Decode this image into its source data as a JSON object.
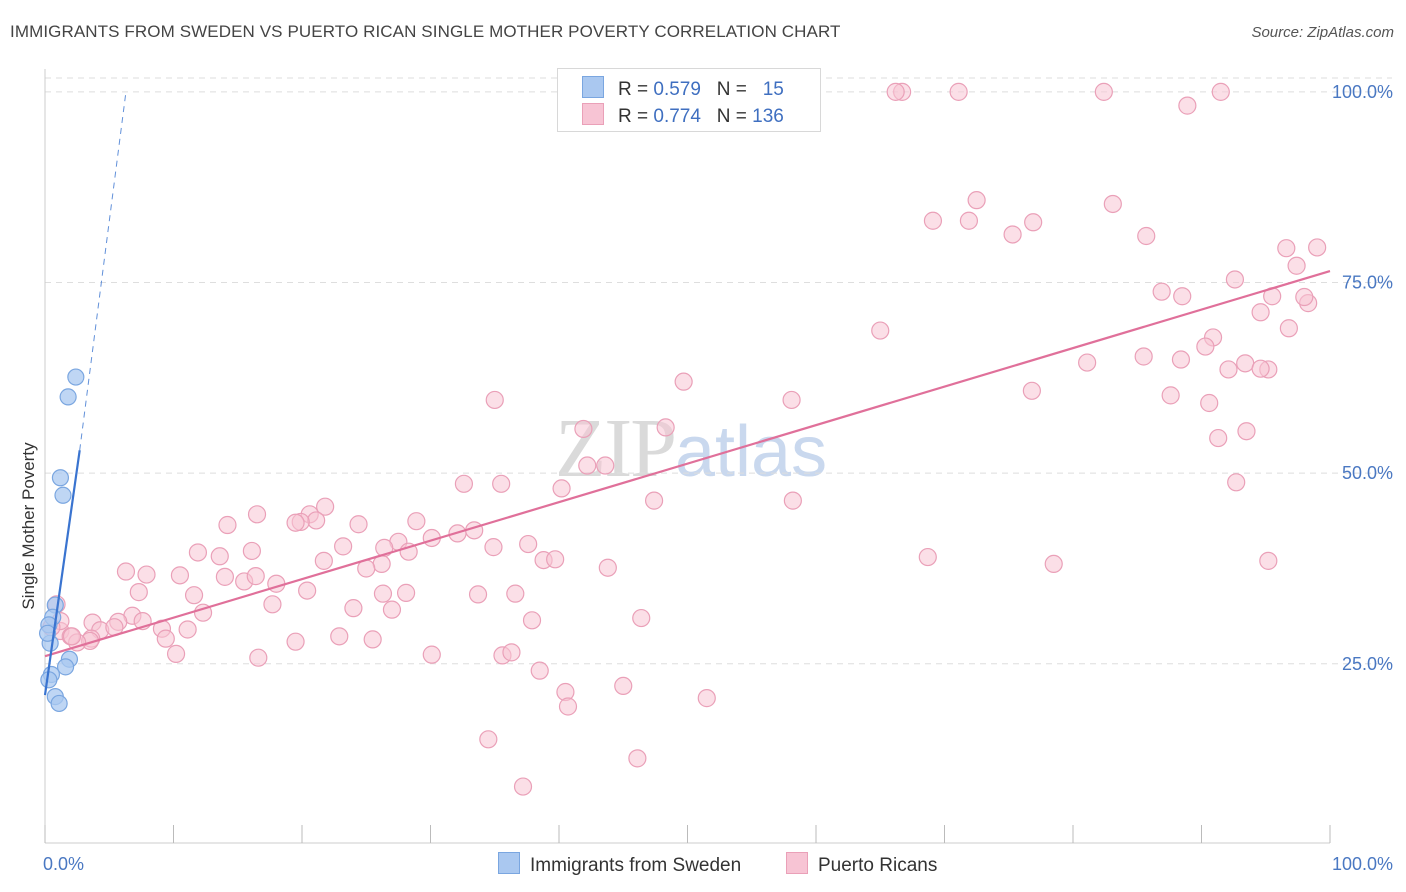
{
  "header": {
    "title": "IMMIGRANTS FROM SWEDEN VS PUERTO RICAN SINGLE MOTHER POVERTY CORRELATION CHART",
    "source": "Source: ZipAtlas.com"
  },
  "watermark": {
    "zip": "ZIP",
    "atlas": "atlas"
  },
  "legend": {
    "rows": [
      {
        "r_label": "R =",
        "r_value": "0.579",
        "n_label": "N =",
        "n_value": "15"
      },
      {
        "r_label": "R =",
        "r_value": "0.774",
        "n_label": "N =",
        "n_value": "136"
      }
    ]
  },
  "bottom_legend": {
    "series1": "Immigrants from Sweden",
    "series2": "Puerto Ricans"
  },
  "colors": {
    "blue_fill": "#aac8f0",
    "blue_stroke": "#7aa6e0",
    "blue_line": "#3a74d0",
    "pink_fill": "#f7c4d4",
    "pink_stroke": "#eaa0b8",
    "pink_line": "#e0709a",
    "tick_text": "#4a78c2",
    "grid": "#dedede"
  },
  "chart_data": {
    "type": "scatter",
    "title": "IMMIGRANTS FROM SWEDEN VS PUERTO RICAN SINGLE MOTHER POVERTY CORRELATION CHART",
    "xlabel": "",
    "ylabel": "Single Mother Poverty",
    "xlim": [
      0,
      100
    ],
    "ylim": [
      1.5,
      103
    ],
    "x_tick_labels": [
      "0.0%",
      "100.0%"
    ],
    "y_ticks": [
      25,
      50,
      75,
      100
    ],
    "y_tick_labels": [
      "25.0%",
      "50.0%",
      "75.0%",
      "100.0%"
    ],
    "grid": true,
    "legend_position": "top-center",
    "series": [
      {
        "name": "Immigrants from Sweden",
        "color": "#aac8f0",
        "points": [
          [
            2.4,
            62.6
          ],
          [
            1.8,
            60.0
          ],
          [
            1.2,
            49.4
          ],
          [
            1.4,
            47.1
          ],
          [
            0.8,
            32.7
          ],
          [
            0.6,
            31.1
          ],
          [
            0.3,
            30.1
          ],
          [
            0.4,
            27.7
          ],
          [
            1.9,
            25.6
          ],
          [
            1.6,
            24.6
          ],
          [
            0.5,
            23.6
          ],
          [
            0.3,
            22.9
          ],
          [
            0.8,
            20.7
          ],
          [
            1.1,
            19.8
          ],
          [
            0.2,
            29.0
          ]
        ],
        "trend": {
          "x1": 0,
          "y1": 20.9,
          "x2": 2.7,
          "y2": 53.0,
          "dash_x2": 6.3,
          "dash_y2": 100.0
        }
      },
      {
        "name": "Puerto Ricans",
        "color": "#f7c4d4",
        "points": [
          [
            66.7,
            100
          ],
          [
            66.2,
            100
          ],
          [
            71.1,
            100
          ],
          [
            82.4,
            100
          ],
          [
            91.5,
            100
          ],
          [
            88.9,
            98.2
          ],
          [
            71.9,
            83.1
          ],
          [
            69.1,
            83.1
          ],
          [
            72.5,
            85.8
          ],
          [
            76.9,
            82.9
          ],
          [
            75.3,
            81.3
          ],
          [
            83.1,
            85.3
          ],
          [
            85.7,
            81.1
          ],
          [
            99.0,
            79.6
          ],
          [
            96.6,
            79.5
          ],
          [
            97.4,
            77.2
          ],
          [
            92.6,
            75.4
          ],
          [
            86.9,
            73.8
          ],
          [
            88.5,
            73.2
          ],
          [
            95.5,
            73.2
          ],
          [
            98.3,
            72.3
          ],
          [
            98.0,
            73.1
          ],
          [
            94.6,
            71.1
          ],
          [
            96.8,
            69.0
          ],
          [
            65.0,
            68.7
          ],
          [
            90.9,
            67.8
          ],
          [
            90.3,
            66.6
          ],
          [
            85.5,
            65.3
          ],
          [
            88.4,
            64.9
          ],
          [
            81.1,
            64.5
          ],
          [
            93.4,
            64.4
          ],
          [
            92.1,
            63.6
          ],
          [
            95.2,
            63.6
          ],
          [
            94.6,
            63.7
          ],
          [
            76.8,
            60.8
          ],
          [
            87.6,
            60.2
          ],
          [
            90.6,
            59.2
          ],
          [
            58.1,
            59.6
          ],
          [
            49.7,
            62.0
          ],
          [
            35.0,
            59.6
          ],
          [
            91.3,
            54.6
          ],
          [
            93.5,
            55.5
          ],
          [
            48.3,
            56.0
          ],
          [
            41.9,
            55.8
          ],
          [
            42.2,
            51.0
          ],
          [
            43.6,
            51.0
          ],
          [
            40.2,
            48.0
          ],
          [
            92.7,
            48.8
          ],
          [
            35.5,
            48.6
          ],
          [
            32.6,
            48.6
          ],
          [
            47.4,
            46.4
          ],
          [
            58.2,
            46.4
          ],
          [
            21.8,
            45.6
          ],
          [
            20.6,
            44.6
          ],
          [
            21.1,
            43.8
          ],
          [
            19.9,
            43.6
          ],
          [
            19.5,
            43.5
          ],
          [
            24.4,
            43.3
          ],
          [
            28.9,
            43.7
          ],
          [
            33.4,
            42.5
          ],
          [
            30.1,
            41.5
          ],
          [
            32.1,
            42.1
          ],
          [
            14.2,
            43.2
          ],
          [
            16.5,
            44.6
          ],
          [
            27.5,
            41.0
          ],
          [
            23.2,
            40.4
          ],
          [
            26.4,
            40.2
          ],
          [
            16.1,
            39.8
          ],
          [
            11.9,
            39.6
          ],
          [
            13.6,
            39.1
          ],
          [
            6.3,
            37.1
          ],
          [
            7.9,
            36.7
          ],
          [
            10.5,
            36.6
          ],
          [
            14.0,
            36.4
          ],
          [
            15.5,
            35.8
          ],
          [
            16.4,
            36.5
          ],
          [
            21.7,
            38.5
          ],
          [
            28.3,
            39.7
          ],
          [
            26.2,
            38.1
          ],
          [
            25.0,
            37.5
          ],
          [
            34.9,
            40.3
          ],
          [
            37.6,
            40.7
          ],
          [
            38.8,
            38.6
          ],
          [
            39.7,
            38.7
          ],
          [
            43.8,
            37.6
          ],
          [
            68.7,
            39.0
          ],
          [
            78.5,
            38.1
          ],
          [
            95.2,
            38.5
          ],
          [
            18.0,
            35.5
          ],
          [
            20.4,
            34.6
          ],
          [
            26.3,
            34.2
          ],
          [
            28.1,
            34.3
          ],
          [
            11.6,
            34.0
          ],
          [
            7.3,
            34.4
          ],
          [
            33.7,
            34.1
          ],
          [
            36.6,
            34.2
          ],
          [
            17.7,
            32.8
          ],
          [
            12.3,
            31.7
          ],
          [
            24.0,
            32.3
          ],
          [
            27.0,
            32.1
          ],
          [
            37.9,
            30.7
          ],
          [
            46.4,
            31.0
          ],
          [
            6.8,
            31.3
          ],
          [
            3.7,
            30.4
          ],
          [
            5.7,
            30.5
          ],
          [
            7.6,
            30.6
          ],
          [
            4.3,
            29.4
          ],
          [
            5.4,
            29.8
          ],
          [
            1.2,
            29.3
          ],
          [
            2.0,
            28.6
          ],
          [
            3.6,
            28.3
          ],
          [
            9.1,
            29.6
          ],
          [
            11.1,
            29.5
          ],
          [
            3.5,
            28.0
          ],
          [
            2.5,
            27.8
          ],
          [
            2.1,
            28.6
          ],
          [
            22.9,
            28.6
          ],
          [
            25.5,
            28.2
          ],
          [
            9.4,
            28.3
          ],
          [
            19.5,
            27.9
          ],
          [
            10.2,
            26.3
          ],
          [
            30.1,
            26.2
          ],
          [
            35.6,
            26.1
          ],
          [
            16.6,
            25.8
          ],
          [
            36.3,
            26.5
          ],
          [
            38.5,
            24.1
          ],
          [
            40.5,
            21.3
          ],
          [
            45.0,
            22.1
          ],
          [
            51.5,
            20.5
          ],
          [
            40.7,
            19.4
          ],
          [
            34.5,
            15.1
          ],
          [
            46.1,
            12.6
          ],
          [
            37.2,
            8.9
          ],
          [
            0.9,
            32.8
          ],
          [
            1.2,
            30.6
          ],
          [
            0.5,
            29.8
          ]
        ],
        "trend": {
          "x1": 0,
          "y1": 26.0,
          "x2": 100,
          "y2": 76.5
        }
      }
    ]
  }
}
